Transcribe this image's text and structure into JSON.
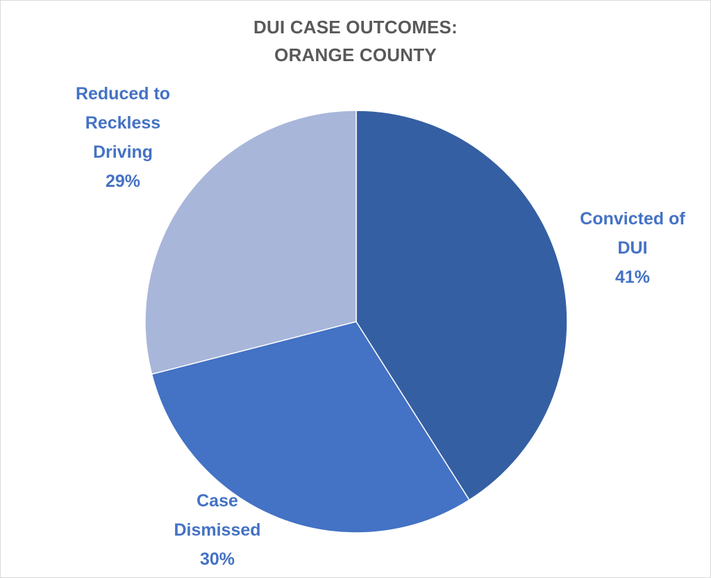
{
  "chart_data": {
    "type": "pie",
    "title_lines": [
      "DUI CASE OUTCOMES:",
      "ORANGE COUNTY"
    ],
    "slices": [
      {
        "label_lines": [
          "Convicted of",
          "DUI"
        ],
        "value": 41,
        "value_label": "41%",
        "color": "#355FA3"
      },
      {
        "label_lines": [
          "Case",
          "Dismissed"
        ],
        "value": 30,
        "value_label": "30%",
        "color": "#4472C4"
      },
      {
        "label_lines": [
          "Reduced to",
          "Reckless",
          "Driving"
        ],
        "value": 29,
        "value_label": "29%",
        "color": "#A8B6DA"
      }
    ],
    "label_color": "#4472C4",
    "title_color": "#595959"
  }
}
